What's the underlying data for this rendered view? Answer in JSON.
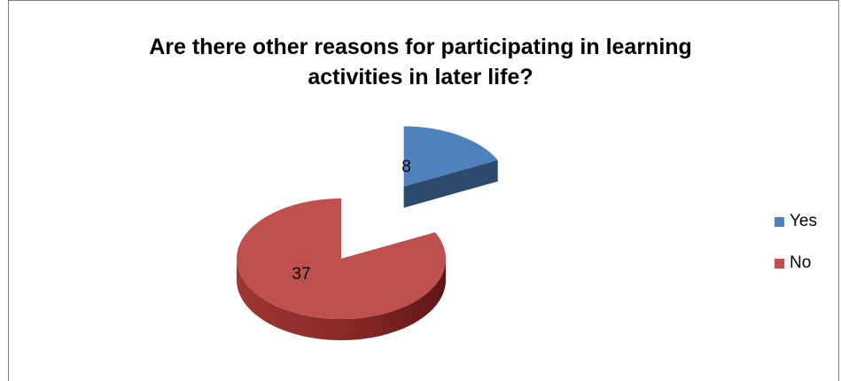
{
  "chart_data": {
    "type": "pie",
    "title_lines": [
      "Are there other reasons for participating in learning",
      "activities in later life?"
    ],
    "categories": [
      "Yes",
      "No"
    ],
    "values": [
      8,
      37
    ],
    "data_labels": [
      "8",
      "37"
    ],
    "colors": {
      "Yes": {
        "top": "#4f81bd",
        "side": "#2c4a6e",
        "light": "#6b97cf"
      },
      "No": {
        "top": "#c0504d",
        "side": "#8c2a28",
        "light": "#cf6562"
      }
    },
    "exploded_slice": "Yes",
    "legend_position": "right",
    "style": "3d"
  }
}
